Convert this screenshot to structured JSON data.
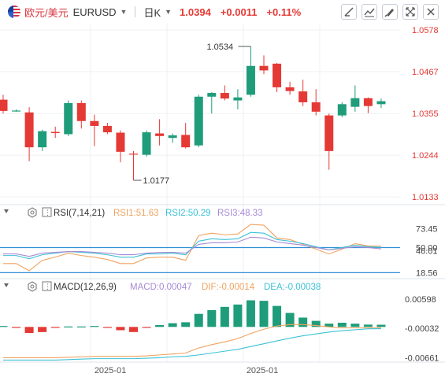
{
  "header": {
    "symbol_cn": "欧元/美元",
    "symbol_en": "EURUSD",
    "period": "日K",
    "price": "1.0394",
    "change": "+0.0011",
    "change_pct": "+0.11%"
  },
  "toolbar_icons": [
    "line-draw-icon",
    "trend-tools-icon",
    "brush-icon",
    "fullscreen-icon",
    "close-icon"
  ],
  "colors": {
    "up": "#1f9c7a",
    "down": "#e53935",
    "rsi1": "#f0a35e",
    "rsi2": "#3cc2d6",
    "rsi3": "#a78bd6",
    "macd_hist_up": "#1f9c7a",
    "macd_hist_down": "#e53935",
    "dif": "#f0a35e",
    "dea": "#3cc2d6"
  },
  "chart_data": [
    {
      "type": "candlestick",
      "title": "",
      "yticks": [
        "1.0578",
        "1.0467",
        "1.0355",
        "1.0244",
        "1.0133"
      ],
      "ytick_values": [
        1.0578,
        1.0467,
        1.0355,
        1.0244,
        1.0133
      ],
      "ylim": [
        1.0133,
        1.0578
      ],
      "annotations": [
        {
          "text": "1.0534",
          "value": 1.0534,
          "at": "max"
        },
        {
          "text": "1.0177",
          "value": 1.0177,
          "at": "min"
        }
      ],
      "xticks": [
        "2025-01",
        "2025-01"
      ],
      "candles": [
        {
          "o": 1.0392,
          "h": 1.0405,
          "l": 1.0355,
          "c": 1.0362
        },
        {
          "o": 1.0362,
          "h": 1.0366,
          "l": 1.036,
          "c": 1.0363
        },
        {
          "o": 1.0358,
          "h": 1.0372,
          "l": 1.0228,
          "c": 1.0265
        },
        {
          "o": 1.0265,
          "h": 1.0312,
          "l": 1.0255,
          "c": 1.0308
        },
        {
          "o": 1.0306,
          "h": 1.032,
          "l": 1.029,
          "c": 1.0303
        },
        {
          "o": 1.03,
          "h": 1.039,
          "l": 1.0295,
          "c": 1.0383
        },
        {
          "o": 1.0383,
          "h": 1.039,
          "l": 1.0315,
          "c": 1.0335
        },
        {
          "o": 1.0335,
          "h": 1.0352,
          "l": 1.0268,
          "c": 1.0322
        },
        {
          "o": 1.0322,
          "h": 1.033,
          "l": 1.03,
          "c": 1.0305
        },
        {
          "o": 1.0304,
          "h": 1.031,
          "l": 1.0225,
          "c": 1.0253
        },
        {
          "o": 1.0248,
          "h": 1.0255,
          "l": 1.0177,
          "c": 1.0246
        },
        {
          "o": 1.0245,
          "h": 1.031,
          "l": 1.024,
          "c": 1.0305
        },
        {
          "o": 1.0302,
          "h": 1.034,
          "l": 1.027,
          "c": 1.0295
        },
        {
          "o": 1.029,
          "h": 1.0302,
          "l": 1.0277,
          "c": 1.0297
        },
        {
          "o": 1.0298,
          "h": 1.033,
          "l": 1.0262,
          "c": 1.0265
        },
        {
          "o": 1.027,
          "h": 1.0405,
          "l": 1.0265,
          "c": 1.04
        },
        {
          "o": 1.04,
          "h": 1.0412,
          "l": 1.0355,
          "c": 1.041
        },
        {
          "o": 1.041,
          "h": 1.043,
          "l": 1.039,
          "c": 1.0395
        },
        {
          "o": 1.039,
          "h": 1.042,
          "l": 1.0366,
          "c": 1.0398
        },
        {
          "o": 1.0405,
          "h": 1.0534,
          "l": 1.04,
          "c": 1.0482
        },
        {
          "o": 1.0482,
          "h": 1.051,
          "l": 1.046,
          "c": 1.047
        },
        {
          "o": 1.0488,
          "h": 1.049,
          "l": 1.0412,
          "c": 1.0425
        },
        {
          "o": 1.0425,
          "h": 1.044,
          "l": 1.0405,
          "c": 1.0415
        },
        {
          "o": 1.0414,
          "h": 1.0445,
          "l": 1.0375,
          "c": 1.0385
        },
        {
          "o": 1.0385,
          "h": 1.042,
          "l": 1.035,
          "c": 1.036
        },
        {
          "o": 1.035,
          "h": 1.0355,
          "l": 1.0205,
          "c": 1.0255
        },
        {
          "o": 1.035,
          "h": 1.0385,
          "l": 1.0345,
          "c": 1.038
        },
        {
          "o": 1.0373,
          "h": 1.043,
          "l": 1.036,
          "c": 1.0396
        },
        {
          "o": 1.0396,
          "h": 1.0398,
          "l": 1.0356,
          "c": 1.0375
        },
        {
          "o": 1.038,
          "h": 1.0395,
          "l": 1.037,
          "c": 1.0388
        }
      ]
    },
    {
      "type": "line",
      "title": "RSI(7,14,21)",
      "legend": [
        {
          "label": "RSI1:51.63",
          "color": "#f0a35e"
        },
        {
          "label": "RSI2:50.29",
          "color": "#3cc2d6"
        },
        {
          "label": "RSI3:48.33",
          "color": "#a78bd6"
        }
      ],
      "yticks": [
        "73.45",
        "50.00",
        "46.01",
        "18.56"
      ],
      "ytick_values": [
        73.45,
        50.0,
        46.01,
        18.56
      ],
      "ylim": [
        15,
        82
      ],
      "reference_lines": [
        50.0,
        18.56
      ],
      "series": [
        {
          "name": "RSI1",
          "values": [
            30,
            30,
            21,
            34,
            38,
            43,
            40,
            38,
            35,
            30,
            30,
            37,
            38,
            38,
            34,
            65,
            68,
            66,
            67,
            79,
            78,
            62,
            60,
            54,
            48,
            42,
            48,
            55,
            52,
            51.63
          ]
        },
        {
          "name": "RSI2",
          "values": [
            40,
            40,
            36,
            41,
            43,
            45,
            44,
            43,
            41,
            38,
            38,
            42,
            42,
            43,
            41,
            58,
            61,
            60,
            61,
            69,
            68,
            60,
            58,
            55,
            51,
            47,
            50,
            53,
            51,
            50.29
          ]
        },
        {
          "name": "RSI3",
          "values": [
            42,
            42,
            39,
            43,
            44,
            45,
            45,
            44,
            43,
            41,
            41,
            43,
            44,
            44,
            43,
            54,
            56,
            56,
            57,
            63,
            62,
            57,
            55,
            53,
            50,
            47,
            49,
            51,
            50,
            48.33
          ]
        }
      ]
    },
    {
      "type": "bar",
      "title": "MACD(12,26,9)",
      "legend": [
        {
          "label": "MACD:0.00047",
          "color": "#a78bd6"
        },
        {
          "label": "DIF:-0.00014",
          "color": "#f0a35e"
        },
        {
          "label": "DEA:-0.00038",
          "color": "#3cc2d6"
        }
      ],
      "yticks": [
        "0.00598",
        "-0.00032",
        "-0.00661"
      ],
      "ytick_values": [
        0.00598,
        -0.00032,
        -0.00661
      ],
      "ylim": [
        -0.0072,
        0.0068
      ],
      "histogram": [
        0.0002,
        -0.0001,
        -0.0013,
        -0.0011,
        -0.0001,
        0.0001,
        0.0001,
        0.0002,
        -0.0002,
        -0.0007,
        -0.0011,
        -0.0002,
        0.0004,
        0.0008,
        0.001,
        0.0028,
        0.0036,
        0.0043,
        0.0048,
        0.0057,
        0.0056,
        0.0045,
        0.003,
        0.002,
        0.0013,
        0.0007,
        0.0009,
        0.0007,
        0.0005,
        0.00047
      ],
      "series": [
        {
          "name": "DIF",
          "values": [
            -0.0066,
            -0.0066,
            -0.0066,
            -0.0066,
            -0.0066,
            -0.0065,
            -0.0064,
            -0.0063,
            -0.0063,
            -0.0063,
            -0.0063,
            -0.0062,
            -0.006,
            -0.0058,
            -0.0056,
            -0.0045,
            -0.0038,
            -0.0032,
            -0.0025,
            -0.0014,
            -0.0005,
            0.0002,
            0.0005,
            0.0005,
            0.0003,
            0.0,
            -0.0002,
            -0.0002,
            -0.0002,
            -0.00014
          ]
        },
        {
          "name": "DEA",
          "values": [
            -0.0071,
            -0.0071,
            -0.0071,
            -0.0071,
            -0.0071,
            -0.007,
            -0.0069,
            -0.0068,
            -0.0068,
            -0.0068,
            -0.0068,
            -0.0067,
            -0.0066,
            -0.0064,
            -0.0063,
            -0.006,
            -0.0056,
            -0.0052,
            -0.0048,
            -0.0042,
            -0.0036,
            -0.003,
            -0.0024,
            -0.0019,
            -0.0015,
            -0.0011,
            -0.0008,
            -0.0006,
            -0.0004,
            -0.00038
          ]
        }
      ]
    }
  ]
}
